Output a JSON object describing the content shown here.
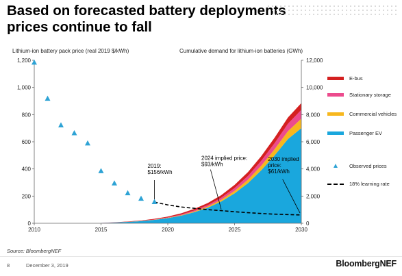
{
  "slide": {
    "title": "Based on forecasted battery deployments prices continue to fall",
    "source": "Source: BloombergNEF",
    "page_number": "8",
    "date": "December 3, 2019",
    "logo": "BloombergNEF"
  },
  "chart_data": {
    "type": "area",
    "left_axis_title": "Lithium-ion battery pack price (real 2019 $/kWh)",
    "right_axis_title": "Cumulative demand for lithium-ion batteries (GWh)",
    "xlim": [
      2010,
      2030
    ],
    "x_ticks": [
      "2010",
      "2015",
      "2020",
      "2025",
      "2030"
    ],
    "left_ylim": [
      0,
      1200
    ],
    "left_ticks": [
      "0",
      "200",
      "400",
      "600",
      "800",
      "1,000",
      "1,200"
    ],
    "right_ylim": [
      0,
      12000
    ],
    "right_ticks": [
      "0",
      "2,000",
      "4,000",
      "6,000",
      "8,000",
      "10,000",
      "12,000"
    ],
    "demand_x": [
      2015,
      2016,
      2017,
      2018,
      2019,
      2020,
      2021,
      2022,
      2023,
      2024,
      2025,
      2026,
      2027,
      2028,
      2029,
      2030
    ],
    "demand_series": [
      {
        "name": "Passenger EV",
        "color": "#1aa7dd",
        "values": [
          20,
          50,
          100,
          160,
          250,
          380,
          560,
          820,
          1150,
          1600,
          2200,
          2950,
          3900,
          5000,
          6200,
          7000
        ]
      },
      {
        "name": "Commercial vehicles",
        "color": "#f7b71d",
        "values": [
          1,
          3,
          5,
          8,
          13,
          22,
          35,
          55,
          85,
          125,
          180,
          250,
          340,
          450,
          580,
          700
        ]
      },
      {
        "name": "Stationary storage",
        "color": "#ec4b8d",
        "values": [
          2,
          4,
          7,
          12,
          20,
          32,
          50,
          75,
          110,
          155,
          210,
          280,
          360,
          450,
          550,
          650
        ]
      },
      {
        "name": "E-bus",
        "color": "#d42020",
        "values": [
          5,
          10,
          18,
          28,
          42,
          60,
          85,
          115,
          150,
          190,
          235,
          285,
          340,
          400,
          460,
          500
        ]
      }
    ],
    "observed_prices": {
      "name": "Observed prices",
      "color": "#2ea3d5",
      "x": [
        2010,
        2011,
        2012,
        2013,
        2014,
        2015,
        2016,
        2017,
        2018,
        2019
      ],
      "y": [
        1183,
        917,
        721,
        663,
        588,
        384,
        294,
        221,
        181,
        156
      ]
    },
    "learning_rate": {
      "name": "18% learning rate",
      "x": [
        2019,
        2020,
        2021,
        2022,
        2023,
        2024,
        2025,
        2026,
        2027,
        2028,
        2029,
        2030
      ],
      "y": [
        156,
        135,
        120,
        110,
        100,
        93,
        85,
        78,
        72,
        67,
        64,
        61
      ]
    },
    "annotations": [
      {
        "lines": [
          "2019:",
          "$156/kWh"
        ],
        "x": 2019,
        "y": 156
      },
      {
        "lines": [
          "2024 implied price:",
          "$93/kWh"
        ],
        "x": 2024,
        "y": 93
      },
      {
        "lines": [
          "2030 implied",
          "price:",
          "$61/kWh"
        ],
        "x": 2030,
        "y": 61
      }
    ],
    "legend_position": "right",
    "legend": [
      {
        "label": "E-bus",
        "kind": "area",
        "color": "#d42020"
      },
      {
        "label": "Stationary storage",
        "kind": "area",
        "color": "#ec4b8d"
      },
      {
        "label": "Commercial vehicles",
        "kind": "area",
        "color": "#f7b71d"
      },
      {
        "label": "Passenger EV",
        "kind": "area",
        "color": "#1aa7dd"
      },
      {
        "label": "Observed prices",
        "kind": "marker",
        "color": "#2ea3d5"
      },
      {
        "label": "18% learning rate",
        "kind": "dash",
        "color": "#000000"
      }
    ]
  }
}
